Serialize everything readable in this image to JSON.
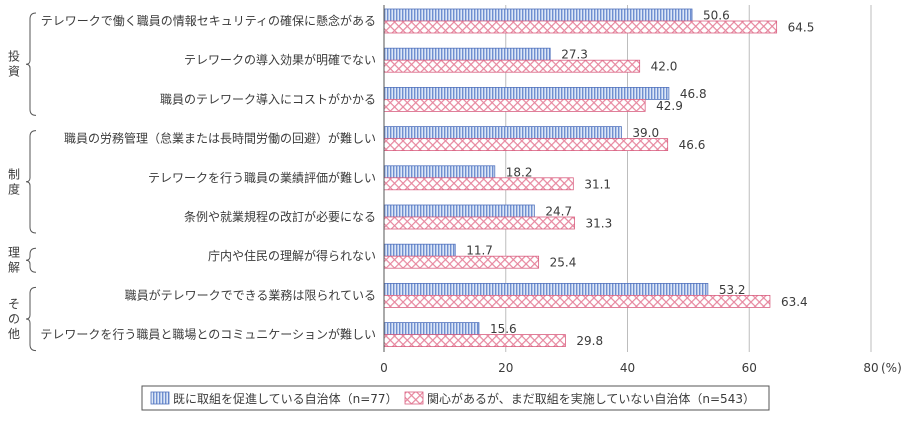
{
  "chart_data": {
    "type": "bar",
    "orientation": "horizontal",
    "categories": [
      "テレワークで働く職員の情報セキュリティの確保に懸念がある",
      "テレワークの導入効果が明確でない",
      "職員のテレワーク導入にコストがかかる",
      "職員の労務管理（怠業または長時間労働の回避）が難しい",
      "テレワークを行う職員の業績評価が難しい",
      "条例や就業規程の改訂が必要になる",
      "庁内や住民の理解が得られない",
      "職員がテレワークでできる業務は限られている",
      "テレワークを行う職員と職場とのコミュニケーションが難しい"
    ],
    "groups": [
      {
        "label": "投資",
        "categories": [
          0,
          1,
          2
        ]
      },
      {
        "label": "制度",
        "categories": [
          3,
          4,
          5
        ]
      },
      {
        "label": "理解",
        "categories": [
          6
        ]
      },
      {
        "label": "その他",
        "categories": [
          7,
          8
        ]
      }
    ],
    "series": [
      {
        "name": "既に取組を促進している自治体（n=77）",
        "color": "#6f8fd0",
        "pattern": "vertical-lines",
        "values": [
          50.6,
          27.3,
          46.8,
          39.0,
          18.2,
          24.7,
          11.7,
          53.2,
          15.6
        ]
      },
      {
        "name": "関心があるが、まだ取組を実施していない自治体（n=543）",
        "color": "#e07a95",
        "pattern": "crosshatch",
        "values": [
          64.5,
          42.0,
          42.9,
          46.6,
          31.1,
          31.3,
          25.4,
          63.4,
          29.8
        ]
      }
    ],
    "value_labels": [
      [
        "50.6",
        "27.3",
        "46.8",
        "39.0",
        "18.2",
        "24.7",
        "11.7",
        "53.2",
        "15.6"
      ],
      [
        "64.5",
        "42.0",
        "42.9",
        "46.6",
        "31.1",
        "31.3",
        "25.4",
        "63.4",
        "29.8"
      ]
    ],
    "xlim": [
      0,
      80
    ],
    "xticks": [
      "0",
      "20",
      "40",
      "60",
      "80"
    ],
    "x_unit": "(%)",
    "grid": true,
    "legend_position": "bottom"
  }
}
